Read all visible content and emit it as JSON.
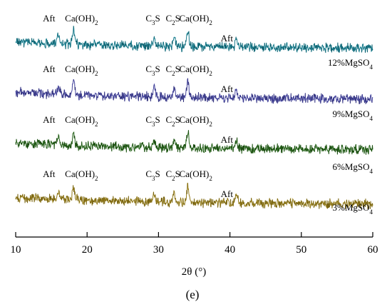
{
  "figure": {
    "panel_label": "(e)"
  },
  "chart_data": {
    "type": "line",
    "xlabel": "2θ (°)",
    "ylabel": "",
    "xlim": [
      10,
      60
    ],
    "x_ticks": [
      10,
      20,
      30,
      40,
      50,
      60
    ],
    "grid": false,
    "legend": "none",
    "series": [
      {
        "name": "12%MgSO4",
        "color": "#1f9bb0",
        "peaks": [
          {
            "phase": "Aft",
            "x": 16.0
          },
          {
            "phase": "Ca(OH)2",
            "x": 18.1
          },
          {
            "phase": "C3S",
            "x": 29.4
          },
          {
            "phase": "C2S",
            "x": 32.2
          },
          {
            "phase": "Ca(OH)2",
            "x": 34.1
          },
          {
            "phase": "Aft",
            "x": 40.9
          }
        ]
      },
      {
        "name": "9%MgSO4",
        "color": "#5656c4",
        "peaks": [
          {
            "phase": "Aft",
            "x": 16.0
          },
          {
            "phase": "Ca(OH)2",
            "x": 18.1
          },
          {
            "phase": "C3S",
            "x": 29.4
          },
          {
            "phase": "C2S",
            "x": 32.2
          },
          {
            "phase": "Ca(OH)2",
            "x": 34.1
          },
          {
            "phase": "Aft",
            "x": 40.9
          }
        ]
      },
      {
        "name": "6%MgSO4",
        "color": "#2e7a1f",
        "peaks": [
          {
            "phase": "Aft",
            "x": 16.0
          },
          {
            "phase": "Ca(OH)2",
            "x": 18.1
          },
          {
            "phase": "C3S",
            "x": 29.4
          },
          {
            "phase": "C2S",
            "x": 32.2
          },
          {
            "phase": "Ca(OH)2",
            "x": 34.1
          },
          {
            "phase": "Aft",
            "x": 40.9
          }
        ]
      },
      {
        "name": "3%MgSO4",
        "color": "#b89a20",
        "peaks": [
          {
            "phase": "Aft",
            "x": 16.0
          },
          {
            "phase": "Ca(OH)2",
            "x": 18.1
          },
          {
            "phase": "C3S",
            "x": 29.4
          },
          {
            "phase": "C2S",
            "x": 32.2
          },
          {
            "phase": "Ca(OH)2",
            "x": 34.1
          },
          {
            "phase": "Aft",
            "x": 40.9
          }
        ]
      }
    ]
  }
}
